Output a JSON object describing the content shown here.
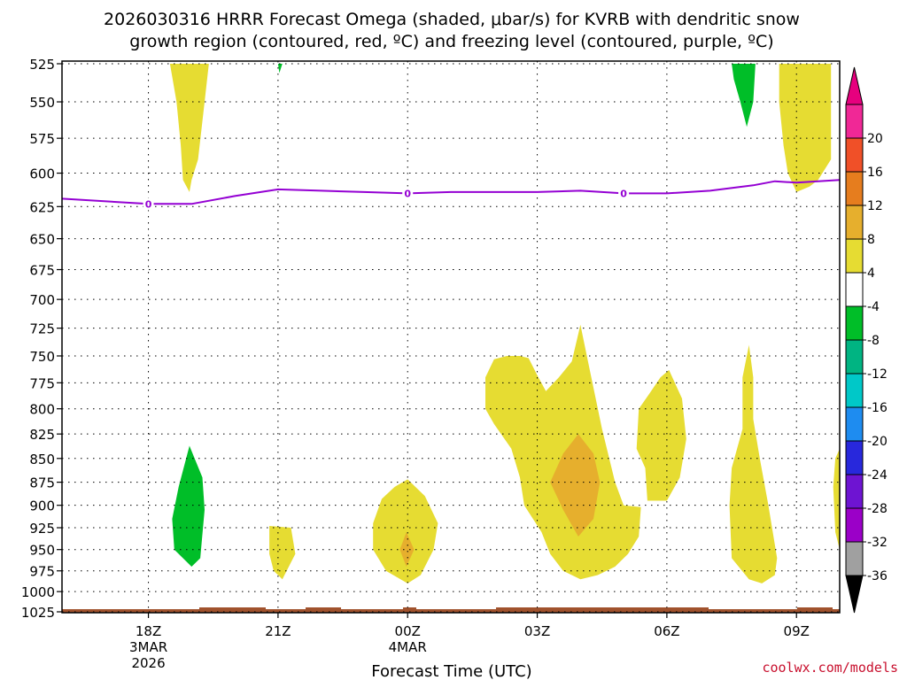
{
  "chart_data": {
    "type": "time-height contour",
    "title_line1": "2026030316 HRRR Forecast Omega (shaded, μbar/s) for KVRB with dendritic snow",
    "title_line2": "growth region (contoured, red, ºC) and freezing level (contoured, purple, ºC)",
    "xlabel": "Forecast Time (UTC)",
    "credit": "coolwx.com/models",
    "xlim": [
      16,
      34
    ],
    "ylim": [
      1025,
      525
    ],
    "y_ticks": [
      525,
      550,
      575,
      600,
      625,
      650,
      675,
      700,
      725,
      750,
      775,
      800,
      825,
      850,
      875,
      900,
      925,
      950,
      975,
      1000,
      1025
    ],
    "x_ticks": [
      {
        "hour": 18,
        "label": "18Z",
        "sub1": "3MAR",
        "sub2": "2026"
      },
      {
        "hour": 21,
        "label": "21Z",
        "sub1": "",
        "sub2": ""
      },
      {
        "hour": 24,
        "label": "00Z",
        "sub1": "4MAR",
        "sub2": ""
      },
      {
        "hour": 27,
        "label": "03Z",
        "sub1": "",
        "sub2": ""
      },
      {
        "hour": 30,
        "label": "06Z",
        "sub1": "",
        "sub2": ""
      },
      {
        "hour": 33,
        "label": "09Z",
        "sub1": "",
        "sub2": ""
      }
    ],
    "colorbar": {
      "levels": [
        -36,
        -32,
        -28,
        -24,
        -20,
        -16,
        -12,
        -8,
        -4,
        4,
        8,
        12,
        16,
        20
      ],
      "colors": [
        "#a0a0a0",
        "#9b00c8",
        "#6e14d2",
        "#2828dc",
        "#1e8cf0",
        "#00c8c8",
        "#00b482",
        "#00be28",
        "#ffffff",
        "#e6dc32",
        "#e6af2d",
        "#e67d1e",
        "#f05028",
        "#f02896"
      ],
      "under_color": "#000000",
      "over_color": "#e6007e"
    },
    "freezing_level": {
      "label": "0",
      "hours": [
        16,
        18,
        19,
        20,
        21,
        22,
        23,
        24,
        25,
        26,
        27,
        28,
        29,
        30,
        31,
        32,
        32.5,
        33,
        34
      ],
      "pressures": [
        619,
        623,
        623,
        617,
        612,
        613,
        614,
        615,
        614,
        614,
        614,
        613,
        615,
        615,
        613,
        609,
        606,
        607,
        605
      ],
      "label_hours": [
        18,
        24,
        29
      ]
    },
    "omega_regions": [
      {
        "value": 6,
        "points": [
          [
            18.5,
            525
          ],
          [
            19.4,
            525
          ],
          [
            19.3,
            550
          ],
          [
            19.15,
            590
          ],
          [
            19.0,
            605
          ],
          [
            18.95,
            614
          ],
          [
            18.8,
            605
          ],
          [
            18.75,
            580
          ],
          [
            18.65,
            550
          ]
        ]
      },
      {
        "value": -6,
        "points": [
          [
            21.0,
            525
          ],
          [
            21.1,
            525
          ],
          [
            21.03,
            531
          ]
        ]
      },
      {
        "value": -6,
        "points": [
          [
            31.5,
            525
          ],
          [
            32.05,
            525
          ],
          [
            32.0,
            550
          ],
          [
            31.85,
            567
          ],
          [
            31.7,
            550
          ],
          [
            31.55,
            535
          ]
        ]
      },
      {
        "value": 6,
        "points": [
          [
            32.6,
            525
          ],
          [
            33.8,
            525
          ],
          [
            33.8,
            590
          ],
          [
            33.5,
            605
          ],
          [
            33.3,
            610
          ],
          [
            33.0,
            614
          ],
          [
            32.8,
            600
          ],
          [
            32.7,
            580
          ],
          [
            32.6,
            550
          ]
        ]
      },
      {
        "value": -6,
        "points": [
          [
            18.95,
            837
          ],
          [
            19.25,
            870
          ],
          [
            19.3,
            905
          ],
          [
            19.2,
            960
          ],
          [
            19.0,
            970
          ],
          [
            18.6,
            950
          ],
          [
            18.55,
            915
          ],
          [
            18.7,
            880
          ]
        ]
      },
      {
        "value": 6,
        "points": [
          [
            20.8,
            923
          ],
          [
            21.3,
            925
          ],
          [
            21.4,
            955
          ],
          [
            21.1,
            985
          ],
          [
            20.9,
            975
          ],
          [
            20.8,
            955
          ],
          [
            20.8,
            935
          ]
        ]
      },
      {
        "value": 6,
        "points": [
          [
            24.0,
            872
          ],
          [
            24.4,
            890
          ],
          [
            24.7,
            920
          ],
          [
            24.6,
            950
          ],
          [
            24.3,
            980
          ],
          [
            24.0,
            990
          ],
          [
            23.5,
            975
          ],
          [
            23.2,
            950
          ],
          [
            23.2,
            920
          ],
          [
            23.4,
            893
          ],
          [
            23.7,
            880
          ]
        ]
      },
      {
        "value": 10,
        "points": [
          [
            23.97,
            930
          ],
          [
            24.15,
            950
          ],
          [
            23.97,
            970
          ],
          [
            23.82,
            950
          ]
        ]
      },
      {
        "value": 6,
        "points": [
          [
            26.8,
            752
          ],
          [
            27.0,
            768
          ],
          [
            27.2,
            783
          ],
          [
            27.5,
            770
          ],
          [
            27.8,
            755
          ],
          [
            28.0,
            722
          ],
          [
            28.2,
            760
          ],
          [
            28.5,
            820
          ],
          [
            28.8,
            875
          ],
          [
            29.0,
            900
          ],
          [
            29.4,
            902
          ],
          [
            29.35,
            935
          ],
          [
            29.1,
            955
          ],
          [
            28.8,
            970
          ],
          [
            28.4,
            980
          ],
          [
            28.0,
            985
          ],
          [
            27.6,
            975
          ],
          [
            27.3,
            955
          ],
          [
            27.1,
            930
          ],
          [
            26.7,
            900
          ],
          [
            26.6,
            870
          ],
          [
            26.4,
            840
          ],
          [
            26.0,
            815
          ],
          [
            25.8,
            800
          ],
          [
            25.8,
            770
          ],
          [
            26.0,
            753
          ],
          [
            26.3,
            750
          ],
          [
            26.6,
            750
          ]
        ]
      },
      {
        "value": 10,
        "points": [
          [
            27.95,
            825
          ],
          [
            28.3,
            845
          ],
          [
            28.45,
            875
          ],
          [
            28.3,
            915
          ],
          [
            27.95,
            935
          ],
          [
            27.6,
            905
          ],
          [
            27.3,
            875
          ],
          [
            27.6,
            845
          ]
        ]
      },
      {
        "value": 6,
        "points": [
          [
            30.05,
            763
          ],
          [
            30.35,
            790
          ],
          [
            30.45,
            830
          ],
          [
            30.3,
            870
          ],
          [
            30.0,
            895
          ],
          [
            29.55,
            895
          ],
          [
            29.5,
            860
          ],
          [
            29.3,
            840
          ],
          [
            29.35,
            800
          ],
          [
            29.6,
            785
          ],
          [
            29.85,
            770
          ]
        ]
      },
      {
        "value": 6,
        "points": [
          [
            31.9,
            740
          ],
          [
            32.0,
            770
          ],
          [
            32.0,
            810
          ],
          [
            32.15,
            850
          ],
          [
            32.35,
            900
          ],
          [
            32.55,
            960
          ],
          [
            32.5,
            980
          ],
          [
            32.2,
            990
          ],
          [
            31.9,
            985
          ],
          [
            31.5,
            960
          ],
          [
            31.45,
            900
          ],
          [
            31.5,
            860
          ],
          [
            31.75,
            820
          ],
          [
            31.75,
            770
          ]
        ]
      },
      {
        "value": 6,
        "points": [
          [
            33.9,
            850
          ],
          [
            34.0,
            840
          ],
          [
            34.0,
            950
          ],
          [
            33.9,
            930
          ],
          [
            33.85,
            880
          ]
        ]
      }
    ],
    "surface_band": {
      "color": "#a0522d"
    }
  }
}
